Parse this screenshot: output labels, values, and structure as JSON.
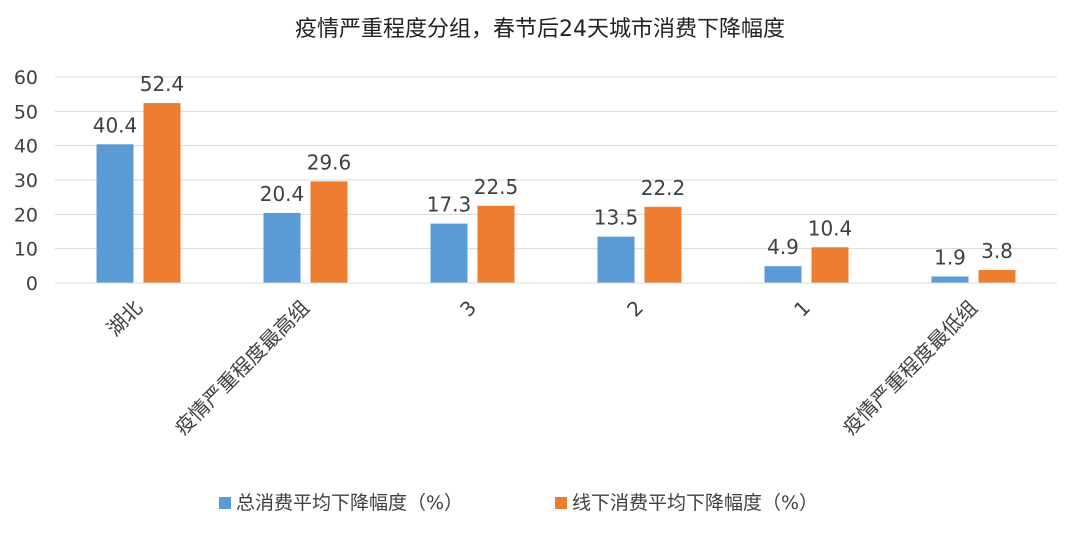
{
  "chart_data": {
    "type": "bar",
    "title": "疫情严重程度分组，春节后24天城市消费下降幅度",
    "categories": [
      "湖北",
      "疫情严重程度最高组",
      "3",
      "2",
      "1",
      "疫情严重程度最低组"
    ],
    "series": [
      {
        "name": "总消费平均下降幅度（%）",
        "color": "#5B9BD5",
        "values": [
          40.4,
          20.4,
          17.3,
          13.5,
          4.9,
          1.9
        ]
      },
      {
        "name": "线下消费平均下降幅度（%）",
        "color": "#ED7D31",
        "values": [
          52.4,
          29.6,
          22.5,
          22.2,
          10.4,
          3.8
        ]
      }
    ],
    "ylim": [
      0,
      60
    ],
    "yticks": [
      0,
      10,
      20,
      30,
      40,
      50,
      60
    ],
    "grid": true,
    "legend_position": "bottom"
  }
}
